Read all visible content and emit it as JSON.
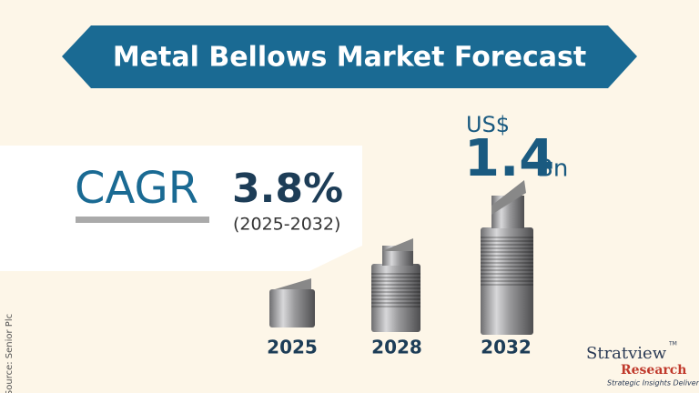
{
  "header": {
    "title": "Metal Bellows Market Forecast"
  },
  "cagr": {
    "label": "CAGR",
    "value": "3.8%",
    "period": "(2025-2032)"
  },
  "market": {
    "currency": "US$",
    "value": "1.4",
    "unit": "Bn"
  },
  "years": [
    "2025",
    "2028",
    "2032"
  ],
  "source": "Source: Senior Plc",
  "logo": {
    "name": "Stratview",
    "tm": "TM",
    "sub": "Research",
    "tagline": "Strategic Insights Delivered"
  }
}
